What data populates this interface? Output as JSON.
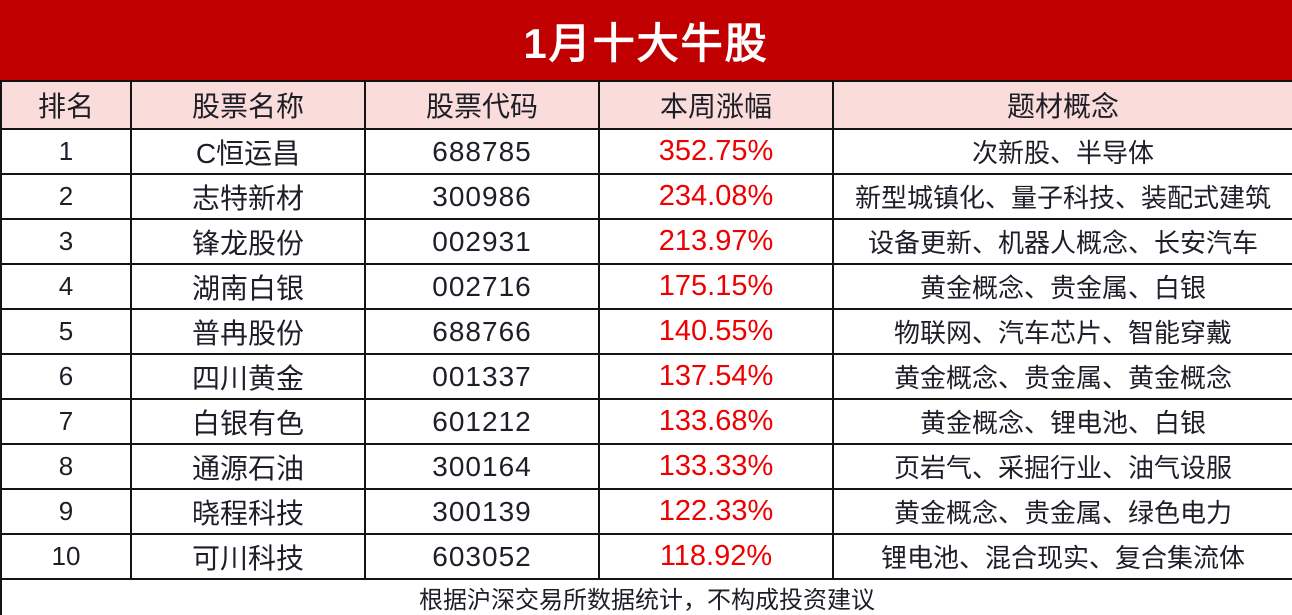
{
  "title": "1月十大牛股",
  "colors": {
    "banner_background": "#c00000",
    "banner_text": "#ffffff",
    "header_row_background": "#fadcdb",
    "gain_text": "#ee0000",
    "body_text": "#1e1e28",
    "grid_border": "#141414"
  },
  "chart_data": {
    "type": "table",
    "title": "1月十大牛股",
    "columns": [
      "排名",
      "股票名称",
      "股票代码",
      "本周涨幅",
      "题材概念"
    ],
    "rows": [
      [
        "1",
        "C恒运昌",
        "688785",
        "352.75%",
        "次新股、半导体"
      ],
      [
        "2",
        "志特新材",
        "300986",
        "234.08%",
        "新型城镇化、量子科技、装配式建筑"
      ],
      [
        "3",
        "锋龙股份",
        "002931",
        "213.97%",
        "设备更新、机器人概念、长安汽车"
      ],
      [
        "4",
        "湖南白银",
        "002716",
        "175.15%",
        "黄金概念、贵金属、白银"
      ],
      [
        "5",
        "普冉股份",
        "688766",
        "140.55%",
        "物联网、汽车芯片、智能穿戴"
      ],
      [
        "6",
        "四川黄金",
        "001337",
        "137.54%",
        "黄金概念、贵金属、黄金概念"
      ],
      [
        "7",
        "白银有色",
        "601212",
        "133.68%",
        "黄金概念、锂电池、白银"
      ],
      [
        "8",
        "通源石油",
        "300164",
        "133.33%",
        "页岩气、采掘行业、油气设服"
      ],
      [
        "9",
        "晓程科技",
        "300139",
        "122.33%",
        "黄金概念、贵金属、绿色电力"
      ],
      [
        "10",
        "可川科技",
        "603052",
        "118.92%",
        "锂电池、混合现实、复合集流体"
      ]
    ],
    "note": "根据沪深交易所数据统计，不构成投资建议"
  }
}
